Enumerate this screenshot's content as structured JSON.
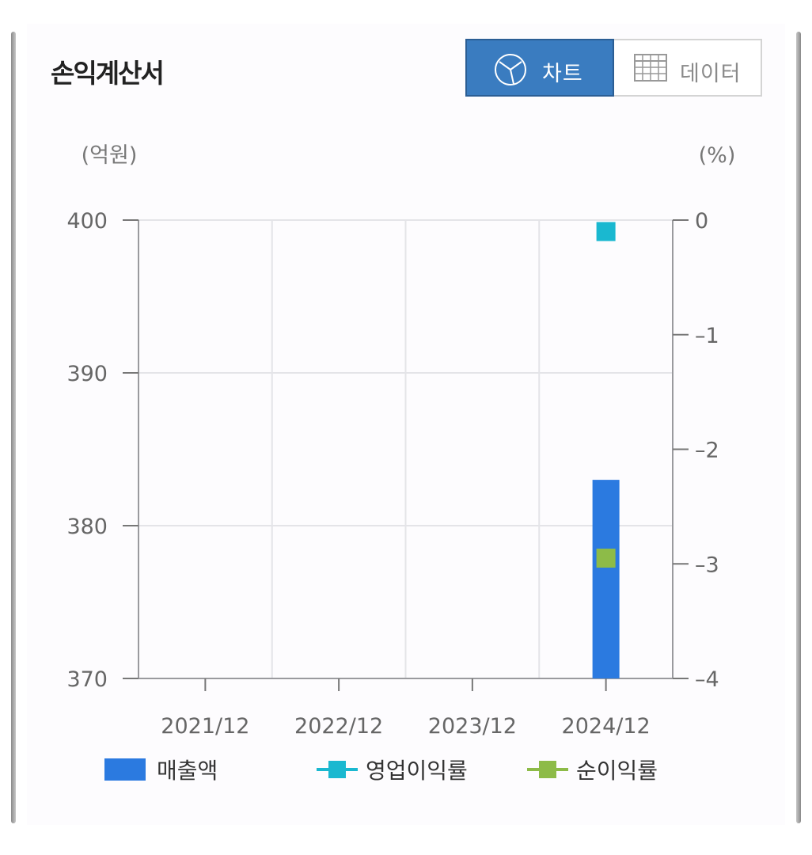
{
  "title": "손익계산서",
  "toggle": {
    "chart_label": "차트",
    "data_label": "데이터",
    "chart_icon": "pie-chart-icon",
    "data_icon": "table-grid-icon"
  },
  "colors": {
    "revenue": "#2b7ae0",
    "operating_margin": "#1ab8d0",
    "net_margin": "#8dbb48",
    "toggle_active": "#3a7cc0"
  },
  "chart_data": {
    "type": "bar",
    "categories": [
      "2021/12",
      "2022/12",
      "2023/12",
      "2024/12"
    ],
    "left_axis": {
      "unit_label": "(억원)",
      "ylim": [
        370,
        400
      ],
      "ticks": [
        "370",
        "380",
        "390",
        "400"
      ]
    },
    "right_axis": {
      "unit_label": "(%)",
      "ylim": [
        -4,
        0
      ],
      "ticks": [
        "-4",
        "-3",
        "-2",
        "-1",
        "0"
      ]
    },
    "series": [
      {
        "name": "매출액",
        "kind": "bar",
        "axis": "left",
        "values": [
          null,
          null,
          null,
          383
        ]
      },
      {
        "name": "영업이익률",
        "kind": "line-marker",
        "axis": "right",
        "values": [
          null,
          null,
          null,
          -0.1
        ]
      },
      {
        "name": "순이익률",
        "kind": "line-marker",
        "axis": "right",
        "values": [
          null,
          null,
          null,
          -2.95
        ]
      }
    ],
    "grid": true,
    "legend_position": "bottom"
  }
}
